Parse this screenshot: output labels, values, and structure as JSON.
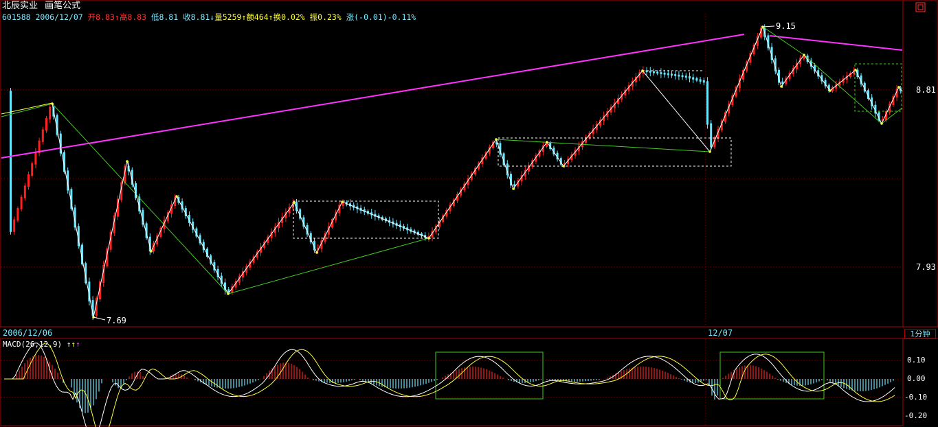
{
  "header": {
    "name": "北辰实业",
    "formula": "画笔公式",
    "code": "601588",
    "date": "2006/12/07",
    "open_label": "开",
    "open": "8.83",
    "high_label": "高",
    "high": "8.83",
    "low_label": "低",
    "low": "8.81",
    "close_label": "收",
    "close": "8.81",
    "vol_label": "量",
    "vol": "5259",
    "amount_label": "额",
    "amount": "464",
    "turnover_label": "换",
    "turnover": "0.02%",
    "amplitude_label": "振",
    "amplitude": "0.23%",
    "change_label": "涨",
    "change": "(-0.01)-0.11%"
  },
  "axis": {
    "price_ticks": [
      "8.81",
      "7.93"
    ],
    "date_start": "2006/12/06",
    "date_mid": "12/07",
    "period": "1分钟",
    "hi_label": "9.15",
    "lo_label": "7.69"
  },
  "macd": {
    "title": "MACD(26,12,9)",
    "ticks": [
      "0.10",
      "0.00",
      "-0.10",
      "-0.20"
    ]
  },
  "colors": {
    "background": "#000000",
    "up": "#ff2020",
    "down": "#66e6ff",
    "trend_magenta": "#ff33ff",
    "stroke_white": "#ffffff",
    "stroke_green": "#44cc22",
    "frame": "#b00000"
  },
  "chart_data": {
    "type": "candlestick",
    "symbol": "601588",
    "period": "1分钟",
    "price_ticks": [
      8.81,
      7.93
    ],
    "pivots": [
      {
        "label": "",
        "price": 8.52
      },
      {
        "label": "7.69",
        "price": 7.69
      },
      {
        "label": "",
        "price": 8.34
      },
      {
        "label": "",
        "price": 8.08
      },
      {
        "label": "",
        "price": 8.26
      },
      {
        "label": "",
        "price": 7.81
      },
      {
        "label": "",
        "price": 8.21
      },
      {
        "label": "",
        "price": 8.09
      },
      {
        "label": "",
        "price": 8.21
      },
      {
        "label": "",
        "price": 8.12
      },
      {
        "label": "",
        "price": 8.44
      },
      {
        "label": "",
        "price": 8.31
      },
      {
        "label": "",
        "price": 8.43
      },
      {
        "label": "",
        "price": 8.37
      },
      {
        "label": "",
        "price": 8.9
      },
      {
        "label": "",
        "price": 8.39
      },
      {
        "label": "9.15",
        "price": 9.15
      },
      {
        "label": "",
        "price": 8.82
      },
      {
        "label": "",
        "price": 8.99
      },
      {
        "label": "",
        "price": 8.67
      },
      {
        "label": "",
        "price": 8.81
      }
    ],
    "macd_ticks": [
      0.1,
      0.0,
      -0.1,
      -0.2
    ]
  }
}
